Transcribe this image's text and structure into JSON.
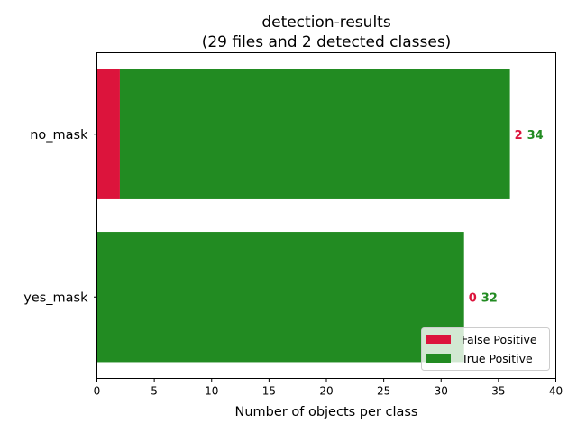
{
  "chart_data": {
    "type": "bar",
    "orientation": "horizontal",
    "stacked": true,
    "title_line1": "detection-results",
    "title_line2": "(29 files and 2 detected classes)",
    "xlabel": "Number of objects per class",
    "ylabel": "",
    "xlim": [
      0,
      40
    ],
    "xticks": [
      "0",
      "5",
      "10",
      "15",
      "20",
      "25",
      "30",
      "35",
      "40"
    ],
    "categories": [
      "no_mask",
      "yes_mask"
    ],
    "series": [
      {
        "name": "False Positive",
        "color": "#dc143c",
        "values": [
          2,
          0
        ]
      },
      {
        "name": "True Positive",
        "color": "#228b22",
        "values": [
          34,
          32
        ]
      }
    ],
    "data_labels": [
      {
        "fp": "2",
        "tp": "34"
      },
      {
        "fp": "0",
        "tp": "32"
      }
    ],
    "legend_position": "lower-right",
    "grid": false
  }
}
